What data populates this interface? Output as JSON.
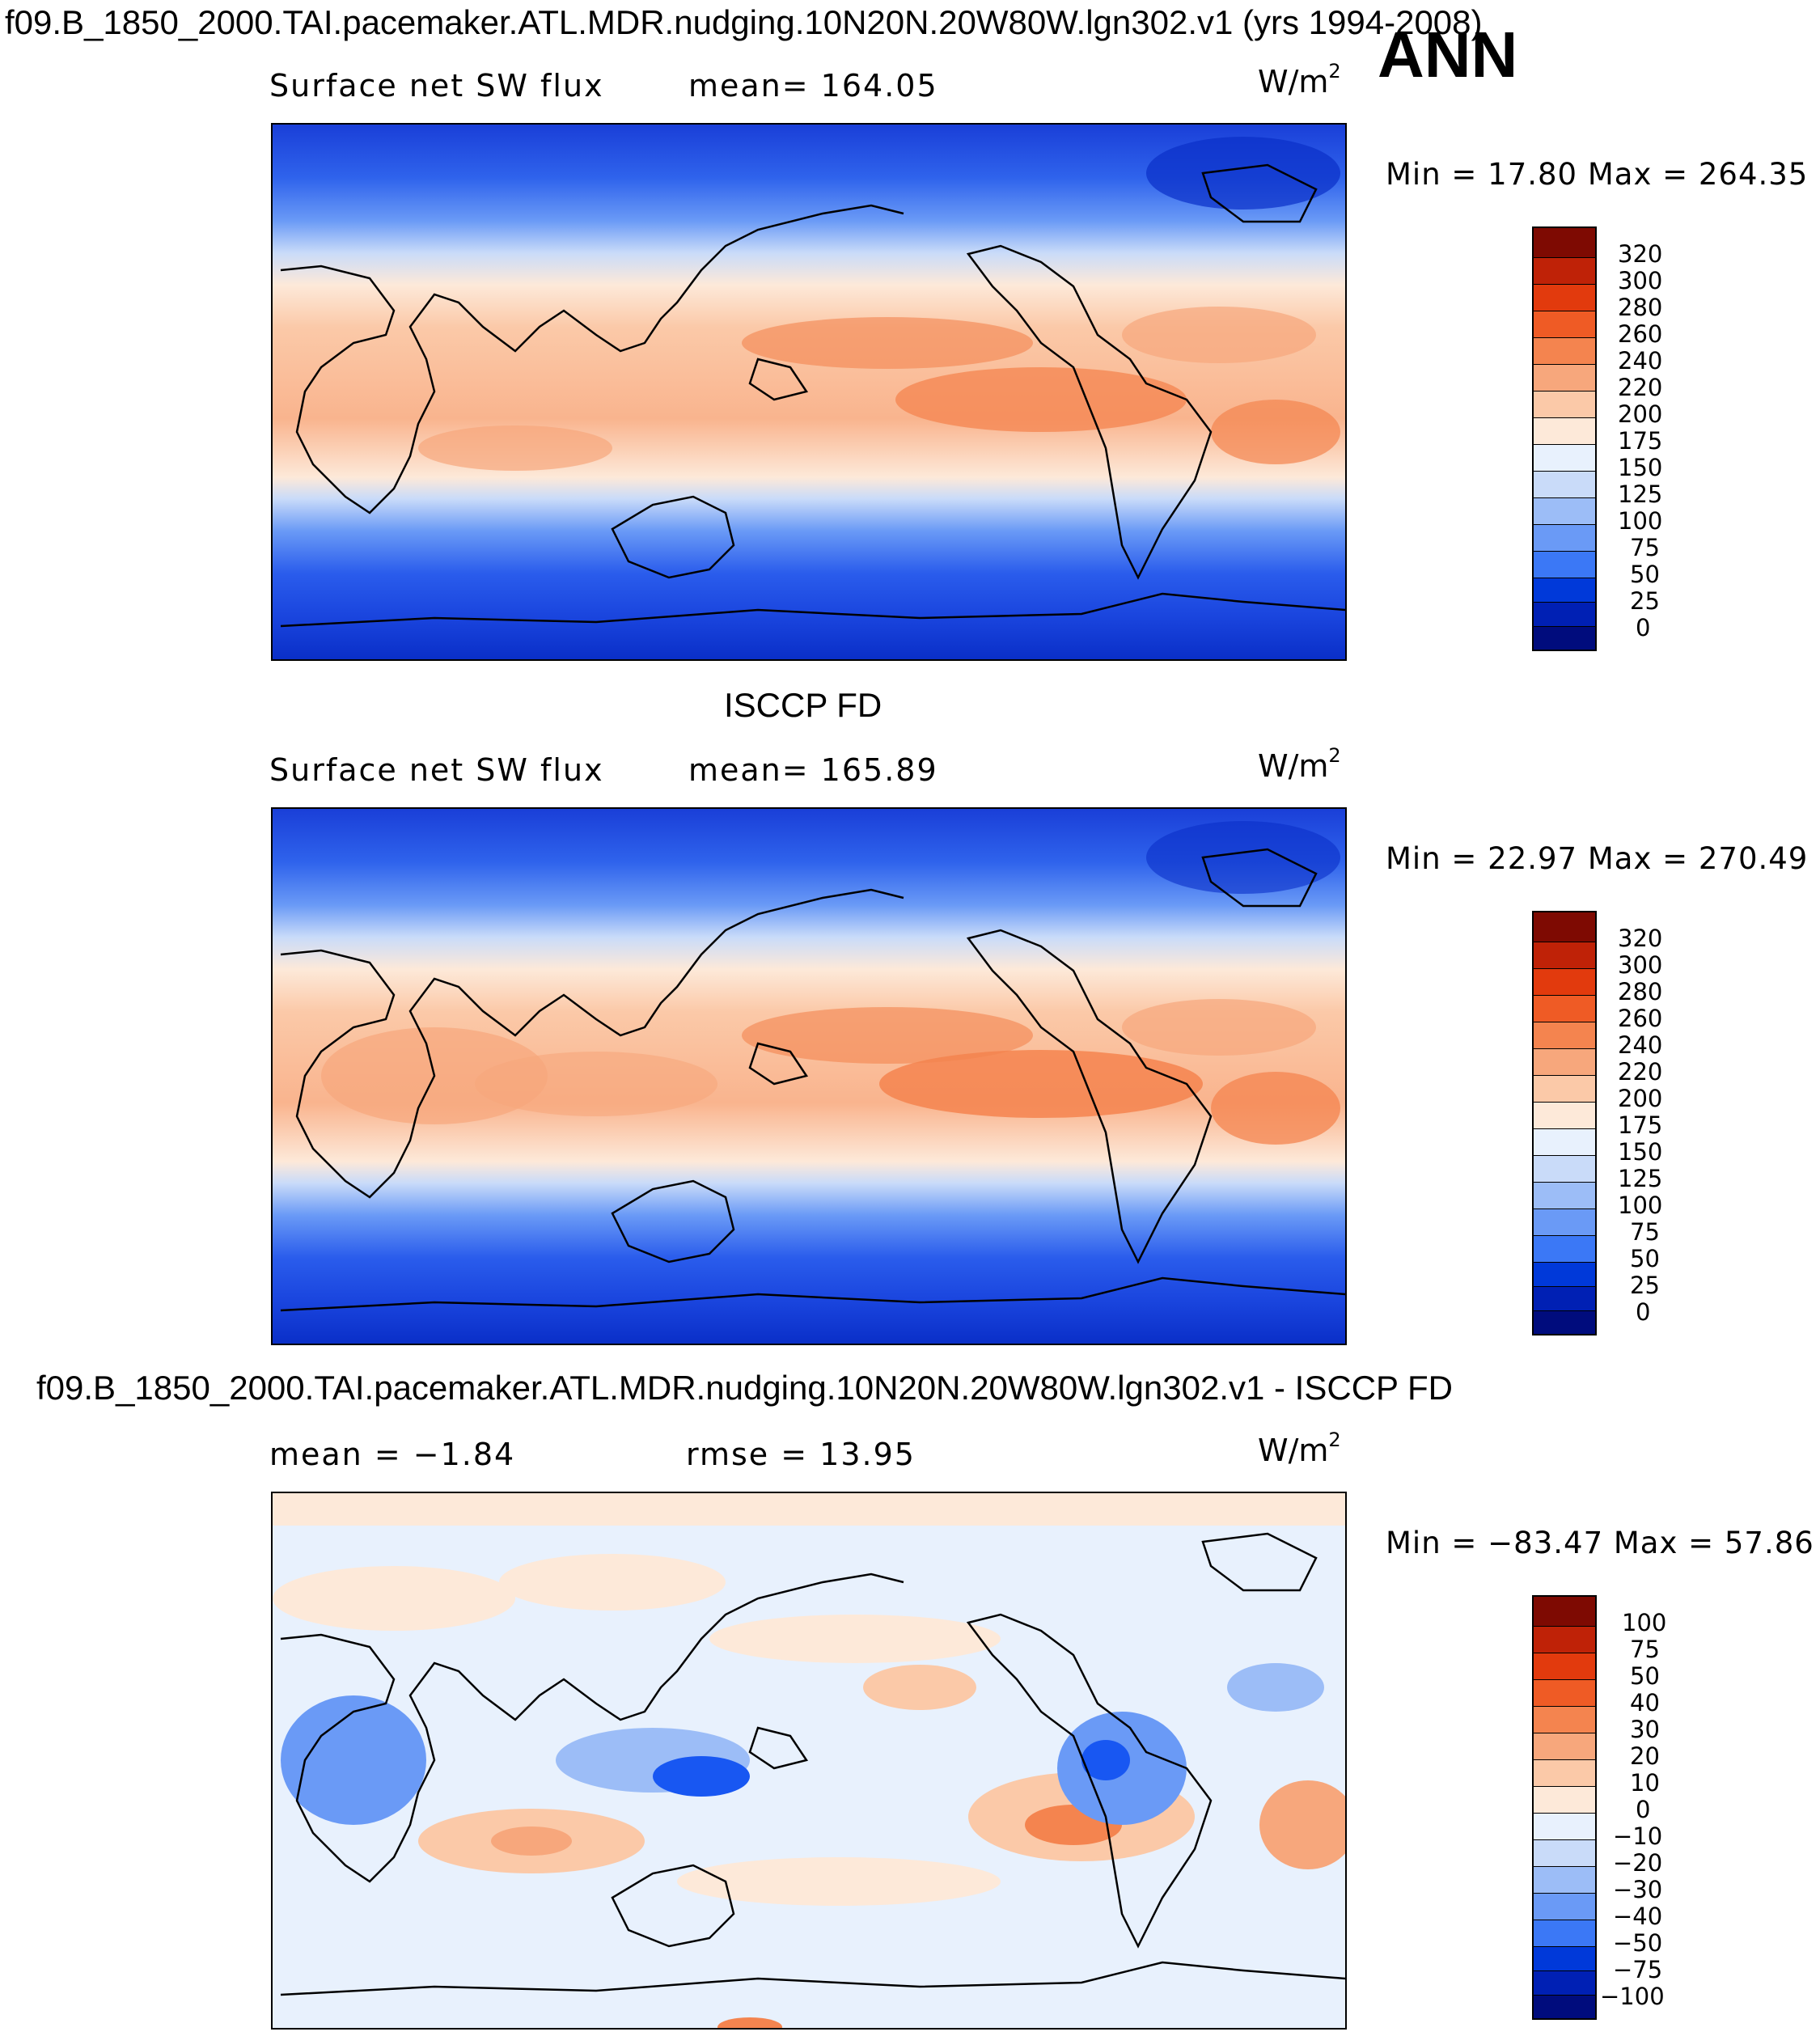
{
  "header": {
    "case_title": "f09.B_1850_2000.TAI.pacemaker.ATL.MDR.nudging.10N20N.20W80W.lgn302.v1 (yrs 1994-2008)",
    "season": "ANN"
  },
  "colors": {
    "flux_levels": [
      "#000c7d",
      "#0020b4",
      "#0039d9",
      "#1857f2",
      "#3b78f6",
      "#6a9af6",
      "#9cbdf7",
      "#c9dbf9",
      "#e8f1fd",
      "#fde9d9",
      "#fbc9a8",
      "#f7a77c",
      "#f4844f",
      "#ef5b25",
      "#e23a0d",
      "#bf2207",
      "#7e0a02"
    ],
    "diff_levels": [
      "#000c7d",
      "#0020b4",
      "#0039d9",
      "#1857f2",
      "#3b78f6",
      "#6a9af6",
      "#9cbdf7",
      "#c9dbf9",
      "#e8f1fd",
      "#fde9d9",
      "#fbc9a8",
      "#f7a77c",
      "#f4844f",
      "#ef5b25",
      "#e23a0d",
      "#bf2207",
      "#7e0a02"
    ]
  },
  "panels": [
    {
      "heading": "",
      "left_label": "Surface net SW flux",
      "mid_label": "mean=  164.05",
      "units": "W/m",
      "units_sup": "2",
      "min_max": "Min =   17.80  Max =  264.35",
      "colorbar_ticks": [
        "320",
        "300",
        "280",
        "260",
        "240",
        "220",
        "200",
        "175",
        "150",
        "125",
        "100",
        "75",
        "50",
        "25",
        "0"
      ]
    },
    {
      "heading": "ISCCP FD",
      "left_label": "Surface net SW flux",
      "mid_label": "mean=  165.89",
      "units": "W/m",
      "units_sup": "2",
      "min_max": "Min =   22.97  Max =  270.49",
      "colorbar_ticks": [
        "320",
        "300",
        "280",
        "260",
        "240",
        "220",
        "200",
        "175",
        "150",
        "125",
        "100",
        "75",
        "50",
        "25",
        "0"
      ]
    },
    {
      "heading": "f09.B_1850_2000.TAI.pacemaker.ATL.MDR.nudging.10N20N.20W80W.lgn302.v1 - ISCCP FD",
      "left_label": "mean =   −1.84",
      "mid_label": "rmse =    13.95",
      "units": "W/m",
      "units_sup": "2",
      "min_max": "Min = −83.47  Max =   57.86",
      "colorbar_ticks": [
        "100",
        "75",
        "50",
        "40",
        "30",
        "20",
        "10",
        "0",
        "−10",
        "−20",
        "−30",
        "−40",
        "−50",
        "−75",
        "−100"
      ]
    }
  ],
  "chart_data": [
    {
      "type": "heatmap",
      "title": "Surface net SW flux",
      "subtitle": "f09.B_1850_2000.TAI.pacemaker.ATL.MDR.nudging.10N20N.20W80W.lgn302.v1 (yrs 1994-2008) ANN",
      "units": "W/m2",
      "mean": 164.05,
      "min": 17.8,
      "max": 264.35,
      "levels": [
        0,
        25,
        50,
        75,
        100,
        125,
        150,
        175,
        200,
        220,
        240,
        260,
        280,
        300,
        320
      ],
      "x": "longitude (0 to 360, centered on Pacific)",
      "y": "latitude (-90 to 90)",
      "zonal_profile": {
        "lat": [
          90,
          70,
          50,
          30,
          10,
          -10,
          -30,
          -50,
          -70,
          -90
        ],
        "value": [
          35,
          70,
          110,
          200,
          230,
          230,
          200,
          95,
          55,
          35
        ]
      }
    },
    {
      "type": "heatmap",
      "title": "ISCCP FD  Surface net SW flux",
      "units": "W/m2",
      "mean": 165.89,
      "min": 22.97,
      "max": 270.49,
      "levels": [
        0,
        25,
        50,
        75,
        100,
        125,
        150,
        175,
        200,
        220,
        240,
        260,
        280,
        300,
        320
      ],
      "zonal_profile": {
        "lat": [
          90,
          70,
          50,
          30,
          10,
          -10,
          -30,
          -50,
          -70,
          -90
        ],
        "value": [
          40,
          75,
          115,
          205,
          235,
          235,
          200,
          100,
          60,
          40
        ]
      }
    },
    {
      "type": "heatmap",
      "title": "f09.B_1850_2000.TAI.pacemaker.ATL.MDR.nudging.10N20N.20W80W.lgn302.v1 - ISCCP FD",
      "units": "W/m2",
      "mean": -1.84,
      "rmse": 13.95,
      "min": -83.47,
      "max": 57.86,
      "levels": [
        -100,
        -75,
        -50,
        -40,
        -30,
        -20,
        -10,
        0,
        10,
        20,
        30,
        40,
        50,
        75,
        100
      ]
    }
  ]
}
